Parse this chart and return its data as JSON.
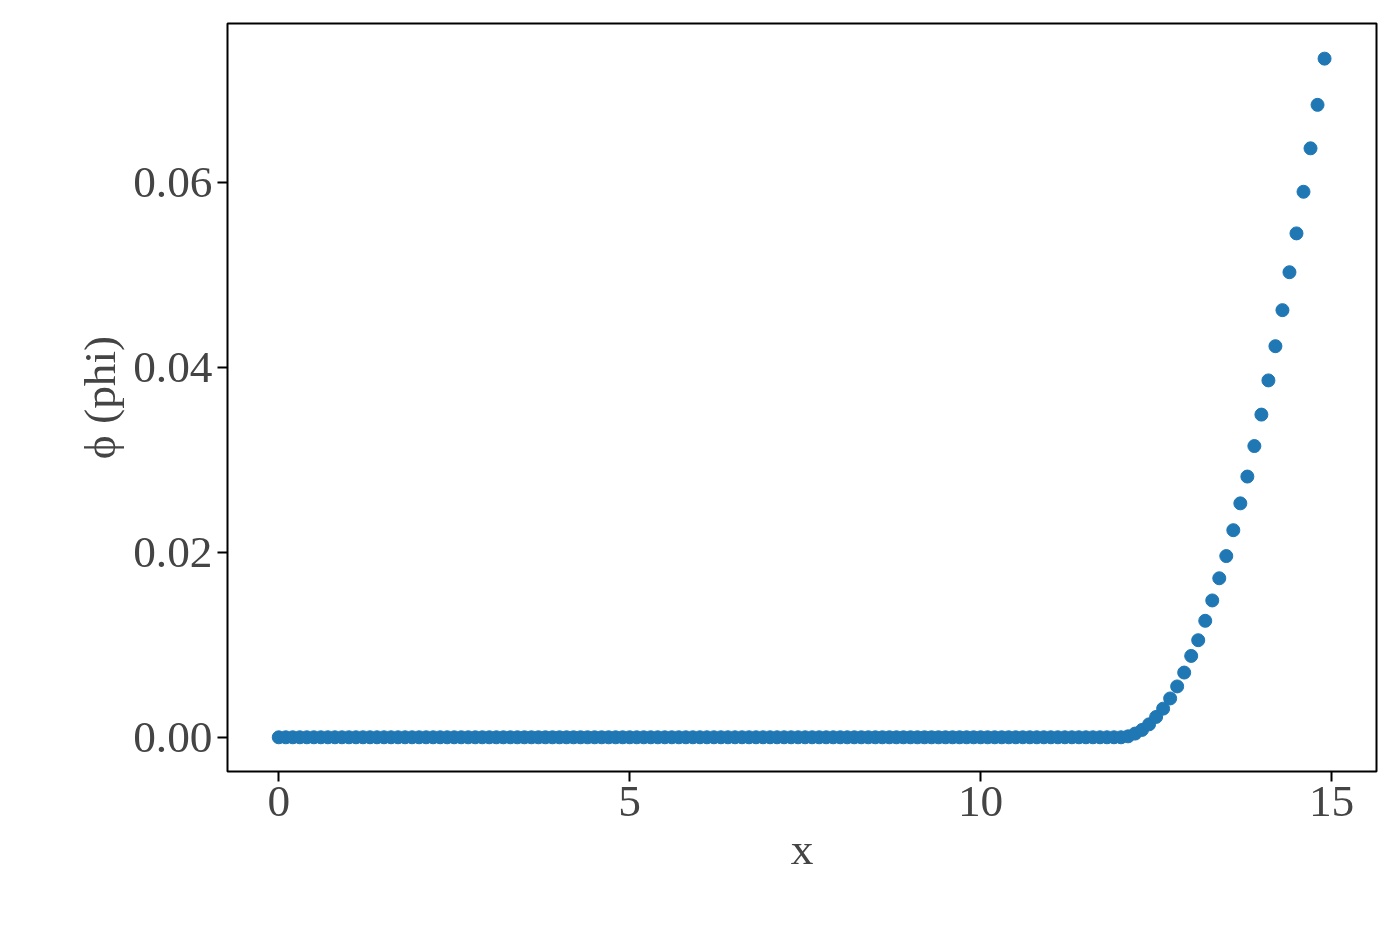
{
  "chart_data": {
    "type": "scatter",
    "xlabel": "x",
    "ylabel": "ϕ (phi)",
    "x": [
      0,
      0.1,
      0.2,
      0.3,
      0.4,
      0.5,
      0.6,
      0.7,
      0.8,
      0.9,
      1,
      1.1,
      1.2,
      1.3,
      1.4,
      1.5,
      1.6,
      1.7,
      1.8,
      1.9,
      2,
      2.1,
      2.2,
      2.3,
      2.4,
      2.5,
      2.6,
      2.7,
      2.8,
      2.9,
      3,
      3.1,
      3.2,
      3.3,
      3.4,
      3.5,
      3.6,
      3.7,
      3.8,
      3.9,
      4,
      4.1,
      4.2,
      4.3,
      4.4,
      4.5,
      4.6,
      4.7,
      4.8,
      4.9,
      5,
      5.1,
      5.2,
      5.3,
      5.4,
      5.5,
      5.6,
      5.7,
      5.8,
      5.9,
      6,
      6.1,
      6.2,
      6.3,
      6.4,
      6.5,
      6.6,
      6.7,
      6.8,
      6.9,
      7,
      7.1,
      7.2,
      7.3,
      7.4,
      7.5,
      7.6,
      7.7,
      7.8,
      7.9,
      8,
      8.1,
      8.2,
      8.3,
      8.4,
      8.5,
      8.6,
      8.7,
      8.8,
      8.9,
      9,
      9.1,
      9.2,
      9.3,
      9.4,
      9.5,
      9.6,
      9.7,
      9.8,
      9.9,
      10,
      10.1,
      10.2,
      10.3,
      10.4,
      10.5,
      10.6,
      10.7,
      10.8,
      10.9,
      11,
      11.1,
      11.2,
      11.3,
      11.4,
      11.5,
      11.6,
      11.7,
      11.8,
      11.9,
      12,
      12.1,
      12.2,
      12.3,
      12.4,
      12.5,
      12.6,
      12.7,
      12.8,
      12.9,
      13,
      13.1,
      13.2,
      13.3,
      13.4,
      13.5,
      13.6,
      13.7,
      13.8,
      13.9,
      14,
      14.1,
      14.2,
      14.3,
      14.4,
      14.5,
      14.6,
      14.7,
      14.8,
      14.9
    ],
    "series": [
      {
        "color": "#1f77b4",
        "values": [
          0,
          0,
          0,
          0,
          0,
          0,
          0,
          0,
          0,
          0,
          0,
          0,
          0,
          0,
          0,
          0,
          0,
          0,
          0,
          0,
          0,
          0,
          0,
          0,
          0,
          0,
          0,
          0,
          0,
          0,
          0,
          0,
          0,
          0,
          0,
          0,
          0,
          0,
          0,
          0,
          0,
          0,
          0,
          0,
          0,
          0,
          0,
          0,
          0,
          0,
          0,
          0,
          0,
          0,
          0,
          0,
          0,
          0,
          0,
          0,
          0,
          0,
          0,
          0,
          0,
          0,
          0,
          0,
          0,
          0,
          0,
          0,
          0,
          0,
          0,
          0,
          0,
          0,
          0,
          0,
          0,
          0,
          0,
          0,
          0,
          0,
          0,
          0,
          0,
          0,
          0,
          0,
          0,
          0,
          0,
          0,
          0,
          0,
          0,
          0,
          0,
          0,
          0,
          0,
          0,
          0,
          0,
          0,
          0,
          0,
          0,
          0,
          0,
          0,
          0,
          0,
          0,
          0,
          0,
          0,
          0,
          0.0001,
          0.0004,
          0.0008,
          0.0014,
          0.0022,
          0.0031,
          0.0042,
          0.0055,
          0.007,
          0.0088,
          0.0105,
          0.0126,
          0.0148,
          0.0172,
          0.0196,
          0.0224,
          0.0253,
          0.0282,
          0.0315,
          0.0349,
          0.0386,
          0.0423,
          0.0462,
          0.0503,
          0.0545,
          0.059,
          0.0637,
          0.0684,
          0.0734
        ]
      }
    ],
    "xlim": [
      -0.73,
      15.64
    ],
    "ylim": [
      -0.0037,
      0.0772
    ],
    "xticks": [
      0,
      5,
      10,
      15
    ],
    "yticks": [
      {
        "value": 0,
        "label": "0.00"
      },
      {
        "value": 0.02,
        "label": "0.02"
      },
      {
        "value": 0.04,
        "label": "0.04"
      },
      {
        "value": 0.06,
        "label": "0.06"
      }
    ],
    "marker": "circle"
  }
}
